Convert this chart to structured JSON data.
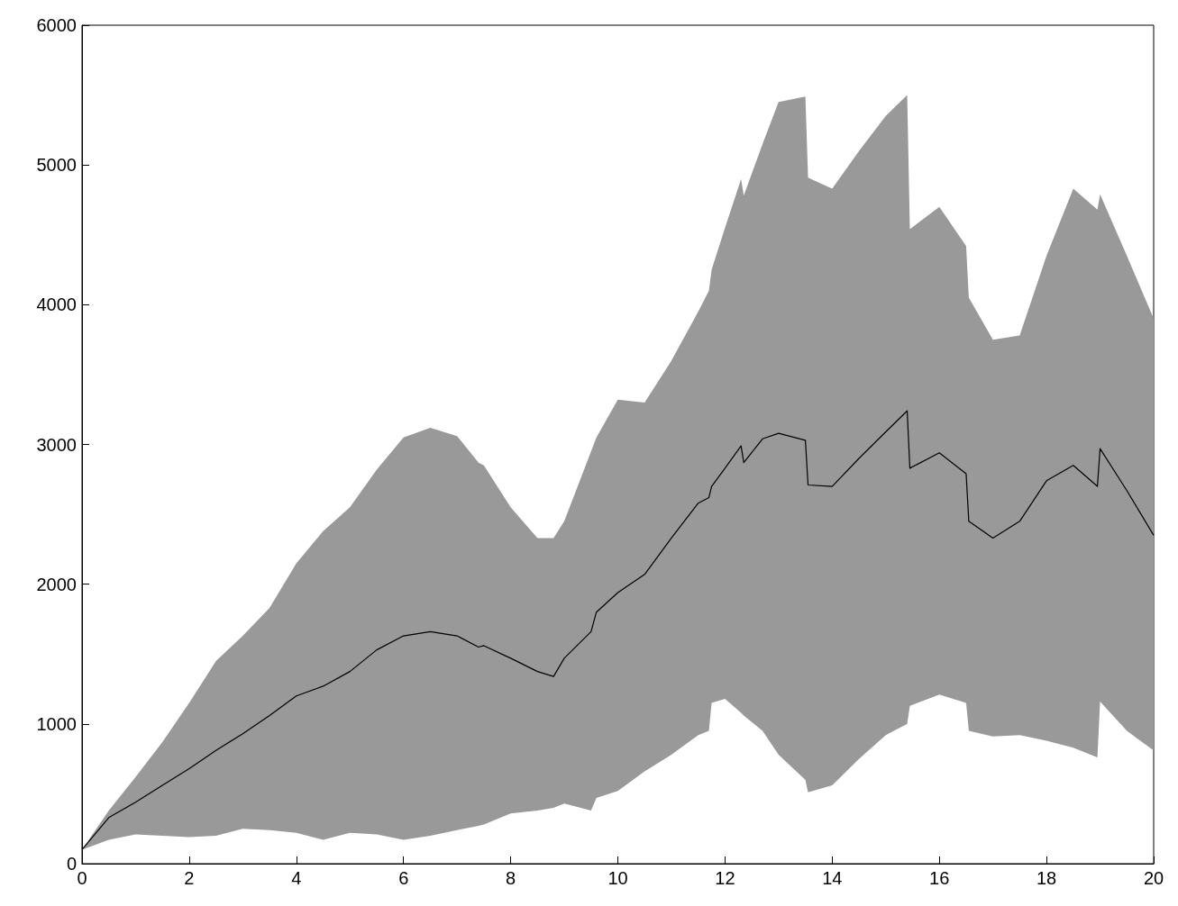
{
  "chart_data": {
    "type": "line",
    "x": [
      0,
      0.5,
      1,
      1.5,
      2,
      2.5,
      3,
      3.5,
      4,
      4.5,
      5,
      5.5,
      6,
      6.5,
      7,
      7.4,
      7.5,
      8,
      8.5,
      8.8,
      9,
      9.5,
      9.6,
      10,
      10.5,
      11,
      11.5,
      11.7,
      11.75,
      12,
      12.3,
      12.35,
      12.7,
      13,
      13.5,
      13.55,
      14,
      14.5,
      15,
      15.4,
      15.45,
      16,
      16.5,
      16.55,
      17,
      17.5,
      18,
      18.5,
      18.95,
      19,
      19.5,
      20
    ],
    "series": [
      {
        "color": "#000000",
        "values": [
          100,
          330,
          440,
          560,
          680,
          810,
          930,
          1060,
          1200,
          1270,
          1375,
          1530,
          1630,
          1660,
          1630,
          1550,
          1560,
          1470,
          1375,
          1340,
          1470,
          1660,
          1800,
          1940,
          2070,
          2330,
          2580,
          2620,
          2700,
          2830,
          2990,
          2870,
          3040,
          3080,
          3030,
          2710,
          2700,
          2900,
          3090,
          3240,
          2830,
          2940,
          2790,
          2450,
          2330,
          2450,
          2740,
          2850,
          2700,
          2970,
          2670,
          2350
        ],
        "upper": [
          100,
          380,
          620,
          870,
          1150,
          1450,
          1630,
          1830,
          2150,
          2380,
          2550,
          2820,
          3050,
          3120,
          3060,
          2870,
          2850,
          2550,
          2330,
          2330,
          2450,
          2950,
          3050,
          3320,
          3300,
          3600,
          3950,
          4100,
          4250,
          4550,
          4900,
          4780,
          5150,
          5450,
          5490,
          4910,
          4830,
          5100,
          5350,
          5500,
          4540,
          4700,
          4420,
          4050,
          3750,
          3780,
          4350,
          4830,
          4680,
          4790,
          4350,
          3900
        ],
        "lower": [
          100,
          170,
          210,
          200,
          190,
          200,
          250,
          240,
          220,
          170,
          220,
          210,
          170,
          200,
          240,
          270,
          280,
          360,
          380,
          400,
          430,
          380,
          470,
          520,
          660,
          780,
          920,
          950,
          1150,
          1180,
          1080,
          1060,
          950,
          780,
          600,
          510,
          560,
          750,
          920,
          1000,
          1130,
          1210,
          1150,
          950,
          910,
          920,
          880,
          830,
          760,
          1160,
          950,
          810
        ]
      }
    ],
    "xlim": [
      0,
      20
    ],
    "xticks": [
      0,
      2,
      4,
      6,
      8,
      10,
      12,
      14,
      16,
      18,
      20
    ],
    "ylim": [
      0,
      6000
    ],
    "yticks": [
      0,
      1000,
      2000,
      3000,
      4000,
      5000,
      6000
    ],
    "grid": false,
    "marker": "none",
    "line_style": "solid"
  }
}
